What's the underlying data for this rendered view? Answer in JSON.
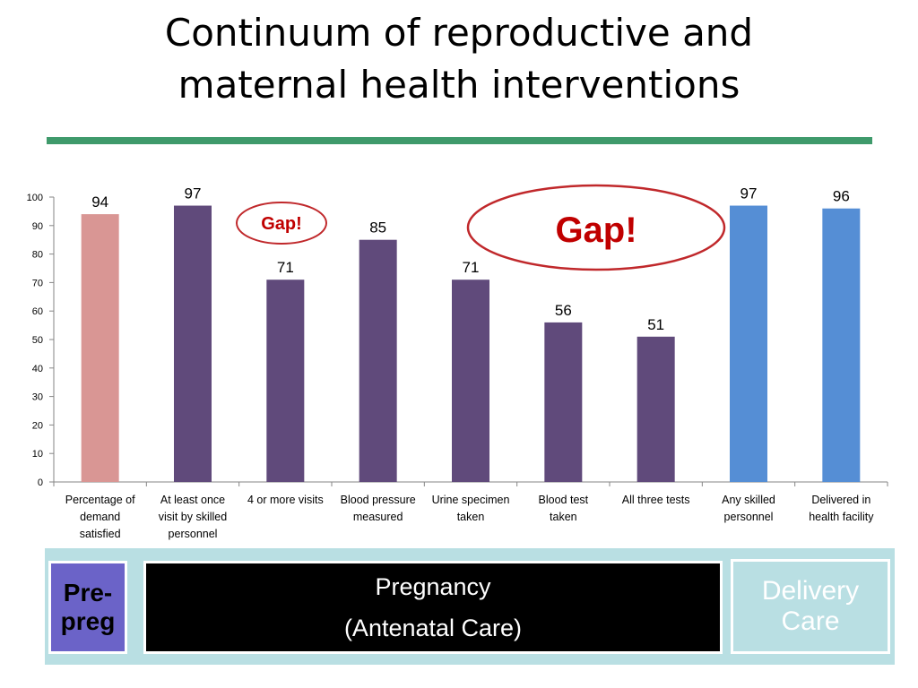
{
  "title": {
    "line1": "Continuum of reproductive and",
    "line2": "maternal health interventions"
  },
  "colors": {
    "title_rule": "#3f9a6b",
    "prepreg_bar": "#d99694",
    "pregnancy_bar": "#604a7b",
    "delivery_bar": "#558ed5",
    "gap_ellipse": "#c0282b",
    "gap_text": "#c00000"
  },
  "chart_data": {
    "type": "bar",
    "title": "",
    "xlabel": "",
    "ylabel": "",
    "ylim": [
      0,
      100
    ],
    "y_ticks": [
      0,
      10,
      20,
      30,
      40,
      50,
      60,
      70,
      80,
      90,
      100
    ],
    "grid": false,
    "legend": "none",
    "categories": [
      "Percentage of demand satisfied",
      "At least once visit by skilled personnel",
      "4 or more visits",
      "Blood pressure measured",
      "Urine specimen taken",
      "Blood test taken",
      "All three tests",
      "Any skilled personnel",
      "Delivered in health facility"
    ],
    "category_lines": [
      [
        "Percentage of",
        "demand",
        "satisfied"
      ],
      [
        "At least once",
        "visit by skilled",
        "personnel"
      ],
      [
        "4 or more visits"
      ],
      [
        "Blood pressure",
        "measured"
      ],
      [
        "Urine specimen",
        "taken"
      ],
      [
        "Blood test",
        "taken"
      ],
      [
        "All three tests"
      ],
      [
        "Any skilled",
        "personnel"
      ],
      [
        "Delivered in",
        "health facility"
      ]
    ],
    "values": [
      94,
      97,
      71,
      85,
      71,
      56,
      51,
      97,
      96
    ],
    "bar_groups": [
      "prepreg",
      "pregnancy",
      "pregnancy",
      "pregnancy",
      "pregnancy",
      "pregnancy",
      "pregnancy",
      "delivery",
      "delivery"
    ],
    "annotations": [
      {
        "text": "Gap!",
        "size": "small"
      },
      {
        "text": "Gap!",
        "size": "large"
      }
    ]
  },
  "phases": {
    "prepreg": {
      "line1": "Pre-",
      "line2": "preg"
    },
    "pregnancy": {
      "line1": "Pregnancy",
      "line2": "(Antenatal Care)"
    },
    "delivery": {
      "line1": "Delivery",
      "line2": "Care"
    }
  }
}
